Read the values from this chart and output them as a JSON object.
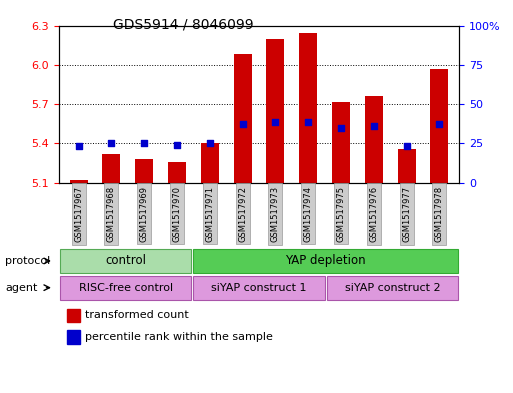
{
  "title": "GDS5914 / 8046099",
  "samples": [
    "GSM1517967",
    "GSM1517968",
    "GSM1517969",
    "GSM1517970",
    "GSM1517971",
    "GSM1517972",
    "GSM1517973",
    "GSM1517974",
    "GSM1517975",
    "GSM1517976",
    "GSM1517977",
    "GSM1517978"
  ],
  "bar_values": [
    5.12,
    5.32,
    5.28,
    5.26,
    5.4,
    6.08,
    6.2,
    6.24,
    5.72,
    5.76,
    5.36,
    5.97
  ],
  "blue_values": [
    5.38,
    5.4,
    5.4,
    5.39,
    5.4,
    5.55,
    5.56,
    5.56,
    5.52,
    5.53,
    5.38,
    5.55
  ],
  "ylim_left": [
    5.1,
    6.3
  ],
  "ylim_right": [
    0,
    100
  ],
  "yticks_left": [
    5.1,
    5.4,
    5.7,
    6.0,
    6.3
  ],
  "yticks_right": [
    0,
    25,
    50,
    75,
    100
  ],
  "bar_color": "#cc0000",
  "blue_color": "#0000cc",
  "protocol_control_color": "#aaddaa",
  "protocol_yap_color": "#55cc55",
  "agent_color": "#dd99dd",
  "tick_label_bg": "#cccccc",
  "title_fontsize": 10,
  "sample_fontsize": 6,
  "band_fontsize": 8.5
}
